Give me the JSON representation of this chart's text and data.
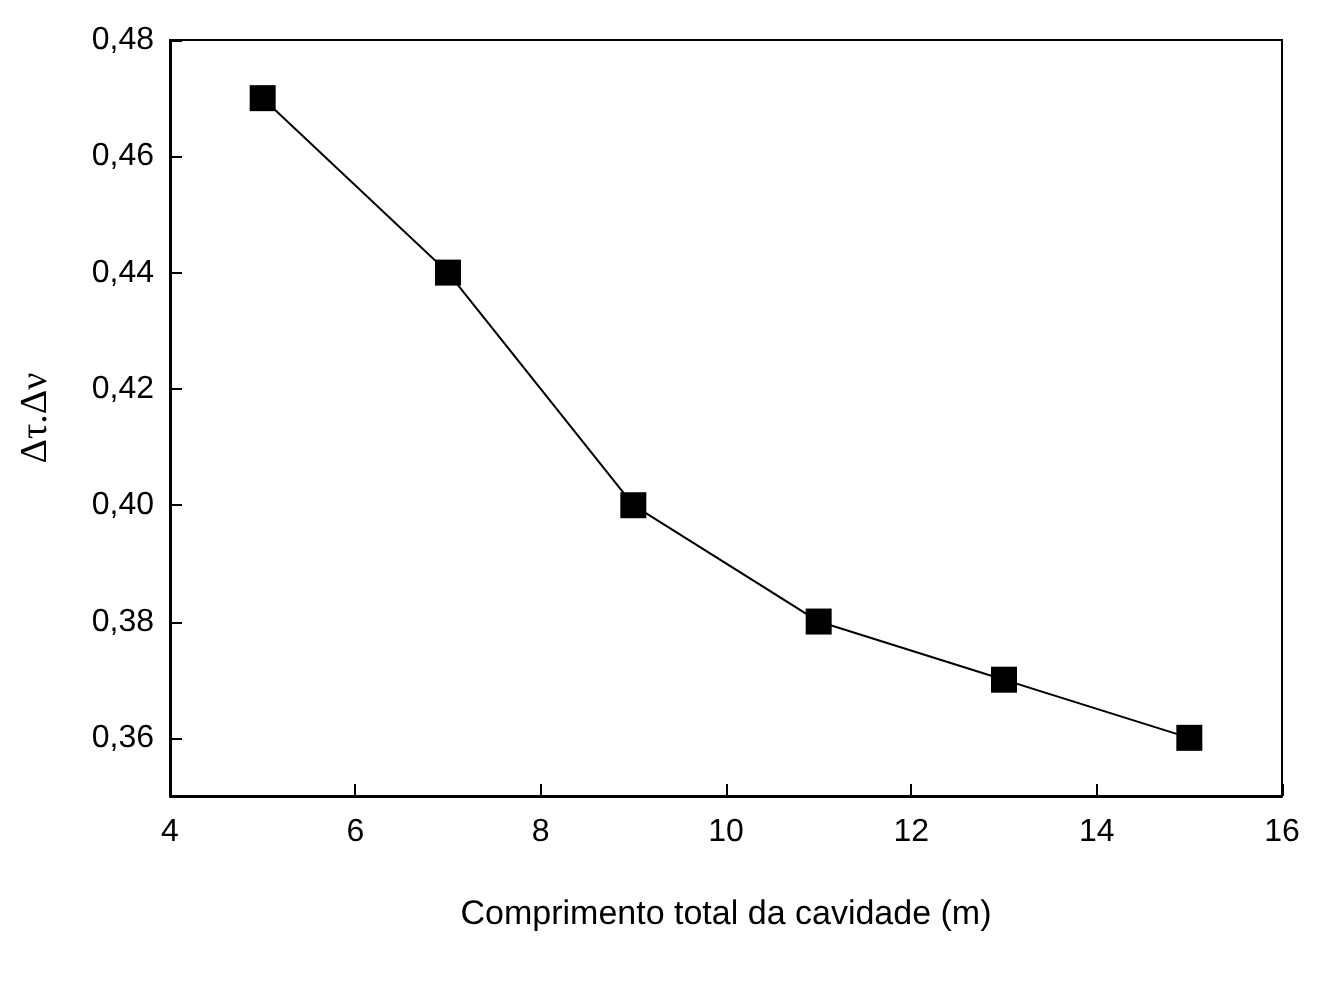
{
  "chart_data": {
    "type": "line",
    "xlabel": "Comprimento total da cavidade (m)",
    "ylabel": "Δτ.Δν",
    "x": [
      5,
      7,
      9,
      11,
      13,
      15
    ],
    "series": [
      {
        "color": "#000000",
        "values": [
          0.47,
          0.44,
          0.4,
          0.38,
          0.37,
          0.36
        ]
      }
    ],
    "xlim": [
      4,
      16
    ],
    "xticks": [
      4,
      6,
      8,
      10,
      12,
      14,
      16
    ],
    "ylim": [
      0.35,
      0.48
    ],
    "yticks": [
      {
        "value": 0.36,
        "label": "0,36"
      },
      {
        "value": 0.38,
        "label": "0,38"
      },
      {
        "value": 0.4,
        "label": "0,40"
      },
      {
        "value": 0.42,
        "label": "0,42"
      },
      {
        "value": 0.44,
        "label": "0,44"
      },
      {
        "value": 0.46,
        "label": "0,46"
      },
      {
        "value": 0.48,
        "label": "0,48"
      }
    ],
    "grid": false,
    "marker": "square",
    "line_style": "solid"
  }
}
